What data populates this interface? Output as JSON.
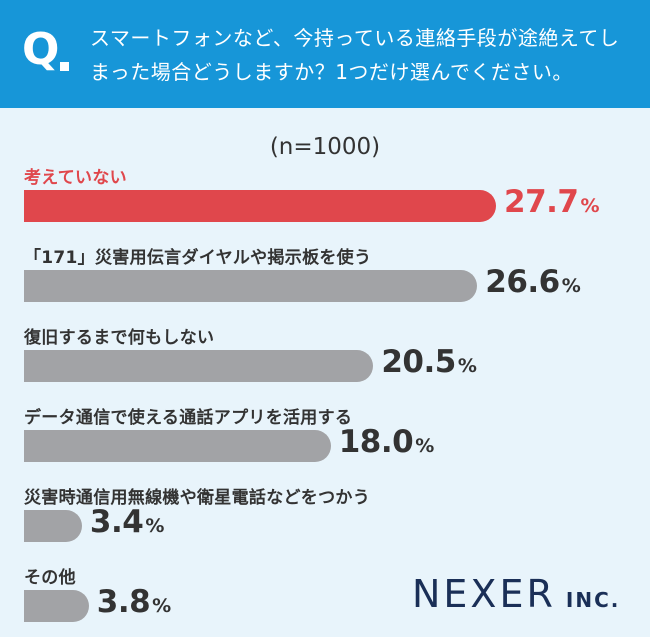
{
  "header": {
    "q_mark": "Q",
    "question": "スマートフォンなど、今持っている連絡手段が途絶えてしまった場合どうしますか？1つだけ選んでください。"
  },
  "sample": "(n=1000)",
  "colors": {
    "highlight": "#e0474c",
    "bar": "#a2a3a6",
    "header": "#1796d8",
    "background": "#e8f4fb",
    "logo": "#1a2f57"
  },
  "chart_data": {
    "type": "bar",
    "orientation": "horizontal",
    "categories": [
      "考えていない",
      "「171」災害用伝言ダイヤルや掲示板を使う",
      "復旧するまで何もしない",
      "データ通信で使える通話アプリを活用する",
      "災害時通信用無線機や衛星電話などをつかう",
      "その他"
    ],
    "values": [
      27.7,
      26.6,
      20.5,
      18.0,
      3.4,
      3.8
    ],
    "value_labels": [
      "27.7",
      "26.6",
      "20.5",
      "18.0",
      "3.4",
      "3.8"
    ],
    "unit": "%",
    "highlight_index": 0,
    "grid": false
  },
  "logo": {
    "main": "NEXER",
    "suffix": "INC."
  }
}
